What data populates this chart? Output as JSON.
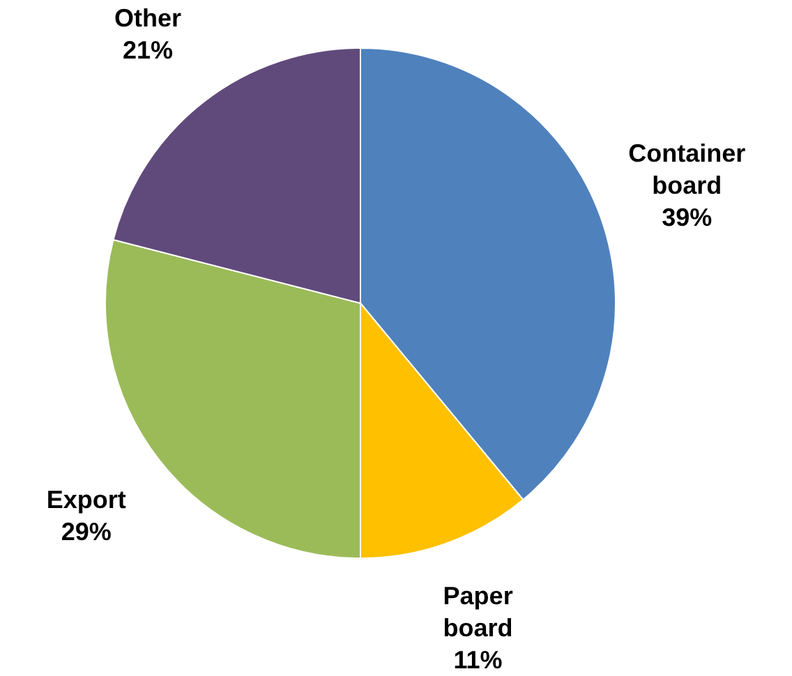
{
  "chart_data": {
    "type": "pie",
    "categories": [
      "Container board",
      "Paper board",
      "Export",
      "Other"
    ],
    "values": [
      39,
      11,
      29,
      21
    ],
    "colors": [
      "#4f81bd",
      "#ffc000",
      "#9bbb59",
      "#604a7b"
    ],
    "value_labels": [
      "39%",
      "11%",
      "29%",
      "21%"
    ],
    "legend": false
  }
}
